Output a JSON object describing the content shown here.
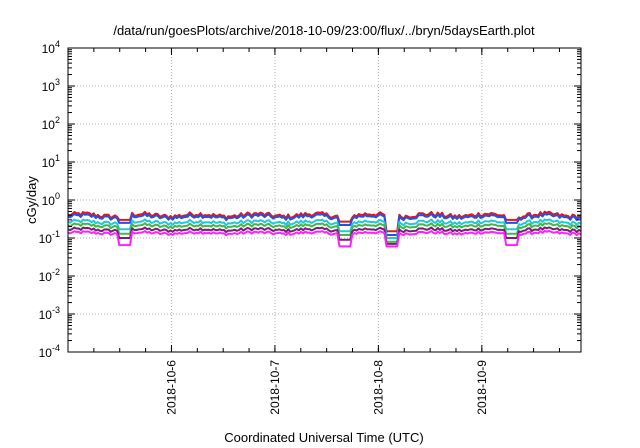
{
  "chart_data": {
    "type": "line",
    "title": "/data/run/goesPlots/archive/2018-10-09/23:00/flux/../bryn/5daysEarth.plot",
    "xlabel": "Coordinated Universal Time (UTC)",
    "ylabel": "cGy/day",
    "y_scale": "log",
    "ylim": [
      0.0001,
      10000
    ],
    "y_tick_exponents": [
      "4",
      "3",
      "2",
      "1",
      "0",
      "-1",
      "-2",
      "-3",
      "-4"
    ],
    "x_range_days": [
      "2018-10-05 00:00",
      "2018-10-09 23:00"
    ],
    "x_ticks": [
      "2018-10-6",
      "2018-10-7",
      "2018-10-8",
      "2018-10-9"
    ],
    "grid": true,
    "series": [
      {
        "color": "#e01818",
        "level": 0.4,
        "dips": [
          {
            "x": "2018-10-05 13:00",
            "v": 0.3
          },
          {
            "x": "2018-10-07 16:00",
            "v": 0.27
          },
          {
            "x": "2018-10-08 03:00",
            "v": 0.15
          },
          {
            "x": "2018-10-09 07:00",
            "v": 0.3
          }
        ]
      },
      {
        "color": "#2550e8",
        "level": 0.36,
        "dips": [
          {
            "x": "2018-10-05 13:00",
            "v": 0.25
          },
          {
            "x": "2018-10-07 16:00",
            "v": 0.22
          },
          {
            "x": "2018-10-08 03:00",
            "v": 0.12
          },
          {
            "x": "2018-10-09 07:00",
            "v": 0.25
          }
        ]
      },
      {
        "color": "#20c8d8",
        "level": 0.26,
        "dips": [
          {
            "x": "2018-10-05 13:00",
            "v": 0.17
          },
          {
            "x": "2018-10-07 16:00",
            "v": 0.15
          },
          {
            "x": "2018-10-08 03:00",
            "v": 0.1
          },
          {
            "x": "2018-10-09 07:00",
            "v": 0.17
          }
        ]
      },
      {
        "color": "#40b848",
        "level": 0.21,
        "dips": [
          {
            "x": "2018-10-05 13:00",
            "v": 0.13
          },
          {
            "x": "2018-10-07 16:00",
            "v": 0.12
          },
          {
            "x": "2018-10-08 03:00",
            "v": 0.08
          },
          {
            "x": "2018-10-09 07:00",
            "v": 0.13
          }
        ]
      },
      {
        "color": "#7a1e7a",
        "level": 0.165,
        "dips": [
          {
            "x": "2018-10-05 13:00",
            "v": 0.1
          },
          {
            "x": "2018-10-07 16:00",
            "v": 0.09
          },
          {
            "x": "2018-10-08 03:00",
            "v": 0.07
          },
          {
            "x": "2018-10-09 07:00",
            "v": 0.1
          }
        ]
      },
      {
        "color": "#ff20ff",
        "level": 0.135,
        "dips": [
          {
            "x": "2018-10-05 13:00",
            "v": 0.065
          },
          {
            "x": "2018-10-07 16:00",
            "v": 0.06
          },
          {
            "x": "2018-10-08 03:00",
            "v": 0.06
          },
          {
            "x": "2018-10-09 07:00",
            "v": 0.065
          }
        ]
      }
    ]
  }
}
